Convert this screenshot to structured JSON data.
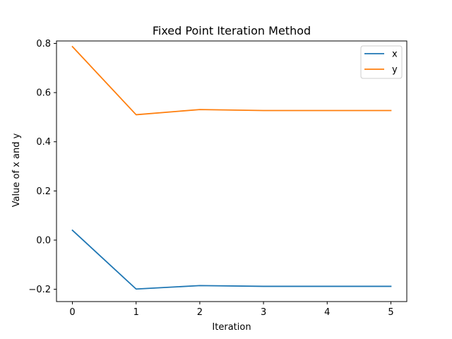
{
  "chart_data": {
    "type": "line",
    "title": "Fixed Point Iteration Method",
    "xlabel": "Iteration",
    "ylabel": "Value of x and y",
    "x": [
      0,
      1,
      2,
      3,
      4,
      5
    ],
    "xlim": [
      -0.25,
      5.25
    ],
    "ylim": [
      -0.25,
      0.81
    ],
    "xticks": [
      0,
      1,
      2,
      3,
      4,
      5
    ],
    "xtick_labels": [
      "0",
      "1",
      "2",
      "3",
      "4",
      "5"
    ],
    "yticks": [
      -0.2,
      0.0,
      0.2,
      0.4,
      0.6,
      0.8
    ],
    "ytick_labels": [
      "−0.2",
      "0.0",
      "0.2",
      "0.4",
      "0.6",
      "0.8"
    ],
    "grid": false,
    "legend_position": "top-right",
    "series": [
      {
        "name": "x",
        "color": "#1f77b4",
        "values": [
          0.04,
          -0.199,
          -0.185,
          -0.188,
          -0.188,
          -0.188
        ]
      },
      {
        "name": "y",
        "color": "#ff7f0e",
        "values": [
          0.787,
          0.51,
          0.531,
          0.527,
          0.527,
          0.527
        ]
      }
    ]
  }
}
